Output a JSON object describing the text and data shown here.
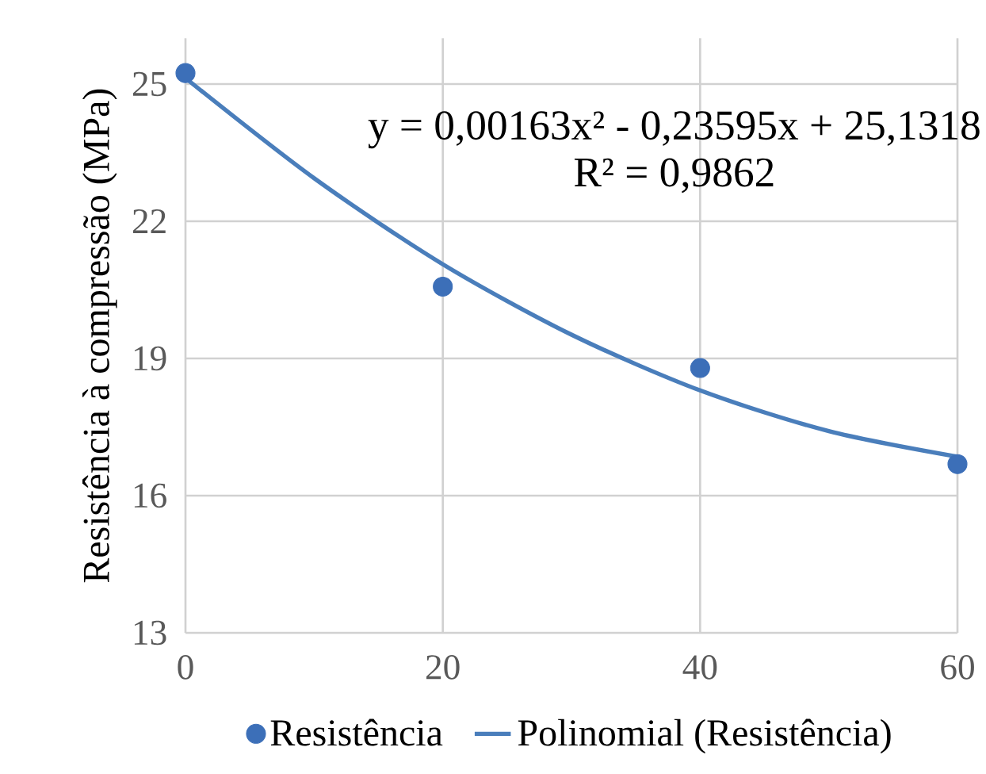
{
  "chart_data": {
    "type": "scatter",
    "xlabel": null,
    "ylabel": "Resistência à compressão (MPa)",
    "x": [
      0,
      20,
      40,
      60
    ],
    "series": [
      {
        "name": "Resistência",
        "color": "#3c6fb8",
        "marker": "circle",
        "values": [
          25.24,
          20.57,
          18.79,
          16.69
        ]
      },
      {
        "name": "Polinomial (Resistência)",
        "type": "line",
        "color": "#4a7ebb",
        "marker": "none",
        "line_style": "solid",
        "x": [
          0,
          10,
          20,
          30,
          40,
          50,
          60
        ],
        "values": [
          25.13,
          22.94,
          21.06,
          19.52,
          18.3,
          17.41,
          16.85
        ]
      }
    ],
    "annotations": [
      {
        "text": "y = 0,00163x² - 0,23595x + 25,1318"
      },
      {
        "text": "R² = 0,9862"
      }
    ],
    "xlim": [
      0,
      60
    ],
    "xticks": [
      0,
      20,
      40,
      60
    ],
    "ylim": [
      13,
      26
    ],
    "yticks": [
      13,
      16,
      19,
      22,
      25
    ],
    "grid": true,
    "legend": "bottom"
  }
}
